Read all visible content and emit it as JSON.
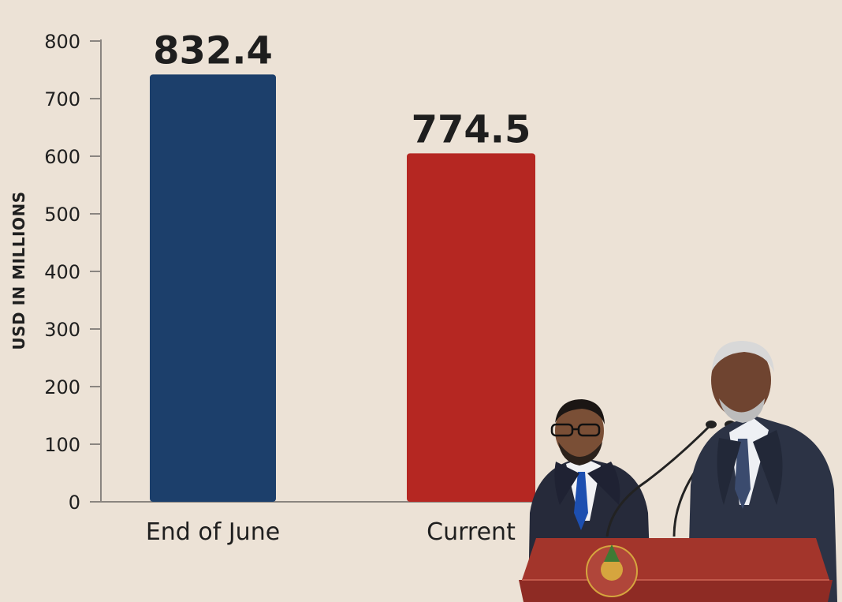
{
  "chart_data": {
    "type": "bar",
    "categories": [
      "End of June",
      "Current"
    ],
    "values": [
      832.4,
      774.5
    ],
    "data_labels": [
      "832.4",
      "774.5"
    ],
    "title": "",
    "xlabel": "",
    "ylabel": "USD IN MILLIONS",
    "ylim": [
      0,
      800
    ],
    "yticks": [
      0,
      100,
      200,
      300,
      400,
      500,
      600,
      700,
      800
    ],
    "bar_colors": [
      "#1c3f6b",
      "#b52722"
    ],
    "grid": false,
    "legend": "none"
  },
  "photo": {
    "description_icon": "speakers-at-podium-photo"
  },
  "colors": {
    "background": "#ece2d6",
    "axis": "#8a8580",
    "text": "#1f1f1f",
    "podium": "#8e2b24"
  }
}
